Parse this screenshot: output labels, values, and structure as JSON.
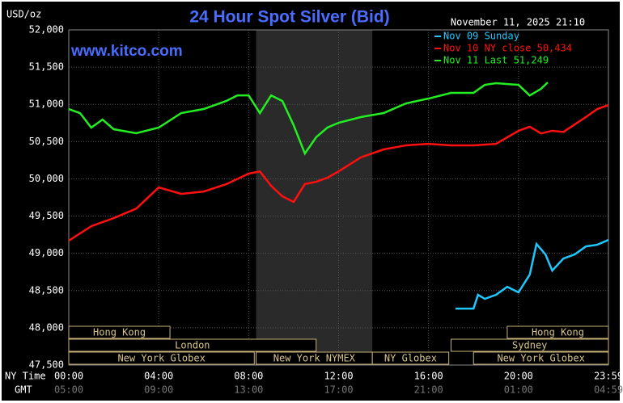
{
  "chart_data": {
    "type": "line",
    "title": "24 Hour Spot Silver (Bid)",
    "unit_label": "USD/oz",
    "timestamp": "November 11, 2025 21:10",
    "watermark": "www.kitco.com",
    "x_axis_label": "NY Time",
    "x2_axis_label": "GMT",
    "xlim": [
      0,
      24
    ],
    "xticks": [
      {
        "value": 0,
        "label": "00:00"
      },
      {
        "value": 4,
        "label": "04:00"
      },
      {
        "value": 8,
        "label": "08:00"
      },
      {
        "value": 12,
        "label": "12:00"
      },
      {
        "value": 16,
        "label": "16:00"
      },
      {
        "value": 20,
        "label": "20:00"
      },
      {
        "value": 24,
        "label": "23:59"
      }
    ],
    "x2tick_labels": [
      "05:00",
      "09:00",
      "13:00",
      "17:00",
      "21:00",
      "01:00",
      "04:59"
    ],
    "ylim": [
      47500,
      52000
    ],
    "yticks": [
      {
        "value": 47500,
        "label": "47,500"
      },
      {
        "value": 48000,
        "label": "48,000"
      },
      {
        "value": 48500,
        "label": "48,500"
      },
      {
        "value": 49000,
        "label": "49,000"
      },
      {
        "value": 49500,
        "label": "49,500"
      },
      {
        "value": 50000,
        "label": "50,000"
      },
      {
        "value": 50500,
        "label": "50,500"
      },
      {
        "value": 51000,
        "label": "51,000"
      },
      {
        "value": 51500,
        "label": "51,500"
      },
      {
        "value": 52000,
        "label": "52,000"
      }
    ],
    "grid": true,
    "shaded_range": [
      8.33,
      13.5
    ],
    "sessions": [
      {
        "label": "Hong Kong",
        "start": 0,
        "end": 4.5,
        "row": 0
      },
      {
        "label": "London",
        "start": 0,
        "end": 11,
        "row": 1
      },
      {
        "label": "New York Globex",
        "start": 0,
        "end": 8.25,
        "row": 2
      },
      {
        "label": "New York NYMEX",
        "start": 8.33,
        "end": 13.5,
        "row": 2
      },
      {
        "label": "NY Globex",
        "start": 13.5,
        "end": 16.9,
        "row": 2
      },
      {
        "label": "Sydney",
        "start": 17,
        "end": 24,
        "row": 1
      },
      {
        "label": "Hong Kong",
        "start": 19.5,
        "end": 24,
        "row": 0
      },
      {
        "label": "New York Globex",
        "start": 18,
        "end": 24,
        "row": 2
      }
    ],
    "series": [
      {
        "name": "Nov 09 Sunday",
        "color": "#1ec8ff",
        "x": [
          17.2,
          18,
          18.2,
          18.5,
          19,
          19.5,
          20,
          20.5,
          20.8,
          21.2,
          21.5,
          22,
          22.5,
          23,
          23.5,
          24
        ],
        "values": [
          48258,
          48258,
          48443,
          48389,
          48443,
          48551,
          48476,
          48714,
          49126,
          48985,
          48768,
          48931,
          48985,
          49093,
          49115,
          49180
        ]
      },
      {
        "name": "Nov 10 NY close 50,434",
        "color": "#ff1010",
        "x": [
          0,
          1,
          2,
          3,
          4,
          5,
          6,
          7,
          8,
          8.5,
          9,
          9.5,
          10,
          10.5,
          11,
          11.5,
          12,
          13,
          14,
          15,
          16,
          17,
          18,
          19,
          20,
          20.5,
          21,
          21.5,
          22,
          23,
          23.5,
          24
        ],
        "values": [
          49170,
          49364,
          49473,
          49600,
          49885,
          49798,
          49830,
          49928,
          50070,
          50100,
          49906,
          49765,
          49690,
          49930,
          49961,
          50015,
          50100,
          50290,
          50395,
          50450,
          50470,
          50450,
          50450,
          50470,
          50645,
          50700,
          50610,
          50645,
          50630,
          50830,
          50937,
          50991
        ]
      },
      {
        "name": "Nov 11 Last 51,249",
        "color": "#22ee22",
        "x": [
          0,
          0.5,
          1,
          1.5,
          2,
          3,
          4,
          5,
          6,
          7,
          7.5,
          8,
          8.5,
          9,
          9.5,
          10,
          10.5,
          11,
          11.5,
          12,
          13,
          14,
          15,
          16,
          17,
          18,
          18.5,
          19,
          20,
          20.5,
          21,
          21.3
        ],
        "values": [
          50937,
          50883,
          50688,
          50796,
          50666,
          50612,
          50688,
          50883,
          50937,
          51045,
          51120,
          51120,
          50883,
          51120,
          51045,
          50720,
          50340,
          50558,
          50688,
          50753,
          50830,
          50883,
          51013,
          51078,
          51154,
          51154,
          51262,
          51284,
          51262,
          51120,
          51208,
          51295
        ]
      }
    ]
  }
}
